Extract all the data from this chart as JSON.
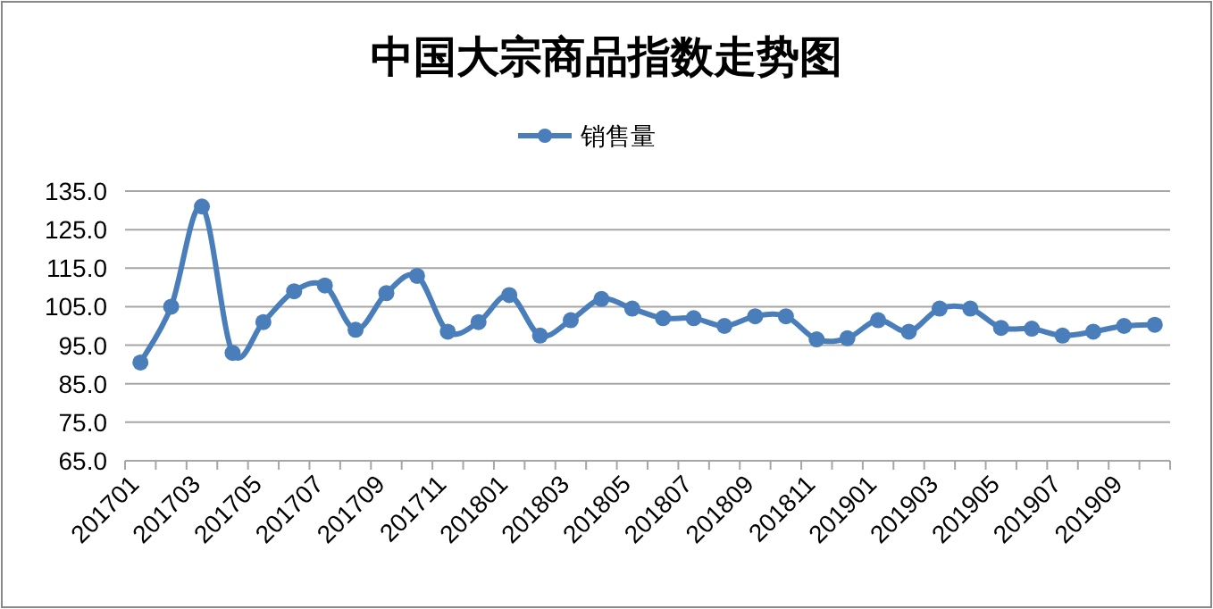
{
  "chart_data": {
    "type": "line",
    "title": "中国大宗商品指数走势图",
    "categories": [
      "201701",
      null,
      "201703",
      null,
      "201705",
      null,
      "201707",
      null,
      "201709",
      null,
      "201711",
      null,
      "201801",
      null,
      "201803",
      null,
      "201805",
      null,
      "201807",
      null,
      "201809",
      null,
      "201811",
      null,
      "201901",
      null,
      "201903",
      null,
      "201905",
      null,
      "201907",
      null,
      "201909",
      null
    ],
    "series": [
      {
        "name": "销售量",
        "color": "#4a7ebb",
        "values": [
          90.5,
          105,
          131,
          93,
          101,
          109,
          110.5,
          99,
          108.5,
          113,
          98.5,
          101,
          108,
          97.5,
          101.5,
          107,
          104.5,
          102,
          102,
          100,
          102.5,
          102.5,
          96.5,
          96.8,
          101.5,
          98.5,
          104.5,
          104.5,
          99.5,
          99.3,
          97.5,
          98.5,
          100,
          100.3
        ]
      }
    ],
    "ylim": [
      65,
      135
    ],
    "yticks": [
      {
        "value": 65,
        "label": "65.0"
      },
      {
        "value": 75,
        "label": "75.0"
      },
      {
        "value": 85,
        "label": "85.0"
      },
      {
        "value": 95,
        "label": "95.0"
      },
      {
        "value": 105,
        "label": "105.0"
      },
      {
        "value": 115,
        "label": "115.0"
      },
      {
        "value": 125,
        "label": "125.0"
      },
      {
        "value": 135,
        "label": "135.0"
      }
    ],
    "grid": "y",
    "legend": "top",
    "marker": "circle",
    "line_style": "solid"
  }
}
